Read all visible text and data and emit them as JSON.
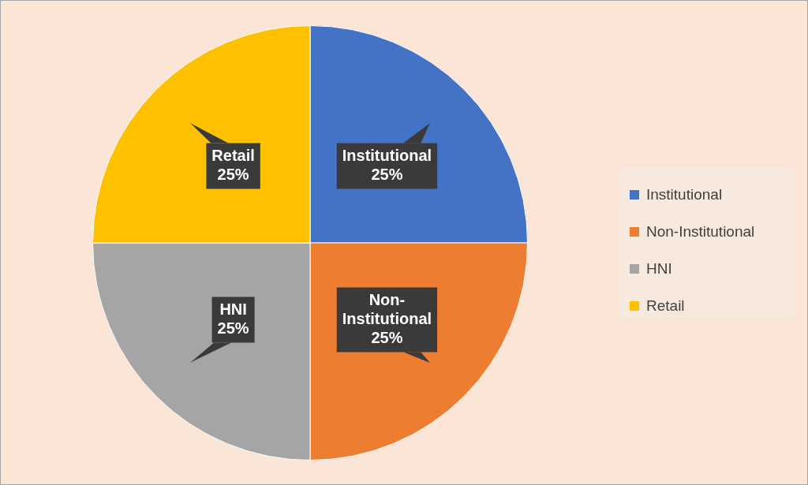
{
  "chart_data": {
    "type": "pie",
    "categories": [
      "Institutional",
      "Non-Institutional",
      "HNI",
      "Retail"
    ],
    "values": [
      25,
      25,
      25,
      25
    ],
    "colors": [
      "#4472c4",
      "#ed7d31",
      "#a5a5a5",
      "#ffc000"
    ],
    "value_labels": [
      "25%",
      "25%",
      "25%",
      "25%"
    ],
    "legend": "right"
  }
}
